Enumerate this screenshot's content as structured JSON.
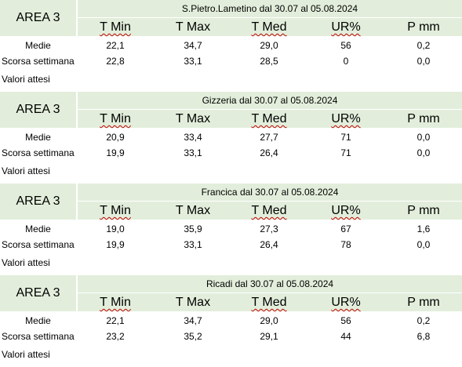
{
  "headers": [
    "T Min",
    "T Max",
    "T Med",
    "UR%",
    "P mm"
  ],
  "row_labels": {
    "medie": "Medie",
    "scorsa": "Scorsa settimana",
    "attesi": "Valori attesi"
  },
  "blocks": [
    {
      "area": "AREA 3",
      "title": "S.Pietro.Lametino dal 30.07 al 05.08.2024",
      "medie": [
        "22,1",
        "34,7",
        "29,0",
        "56",
        "0,2"
      ],
      "scorsa": [
        "22,8",
        "33,1",
        "28,5",
        "0",
        "0,0"
      ]
    },
    {
      "area": "AREA 3",
      "title": "Gizzeria dal 30.07 al 05.08.2024",
      "medie": [
        "20,9",
        "33,4",
        "27,7",
        "71",
        "0,0"
      ],
      "scorsa": [
        "19,9",
        "33,1",
        "26,4",
        "71",
        "0,0"
      ]
    },
    {
      "area": "AREA 3",
      "title": "Francica dal 30.07 al 05.08.2024",
      "medie": [
        "19,0",
        "35,9",
        "27,3",
        "67",
        "1,6"
      ],
      "scorsa": [
        "19,9",
        "33,1",
        "26,4",
        "78",
        "0,0"
      ]
    },
    {
      "area": "AREA 3",
      "title": "Ricadi  dal 30.07 al 05.08.2024",
      "medie": [
        "22,1",
        "34,7",
        "29,0",
        "56",
        "0,2"
      ],
      "scorsa": [
        "23,2",
        "35,2",
        "29,1",
        "44",
        "6,8"
      ]
    }
  ]
}
